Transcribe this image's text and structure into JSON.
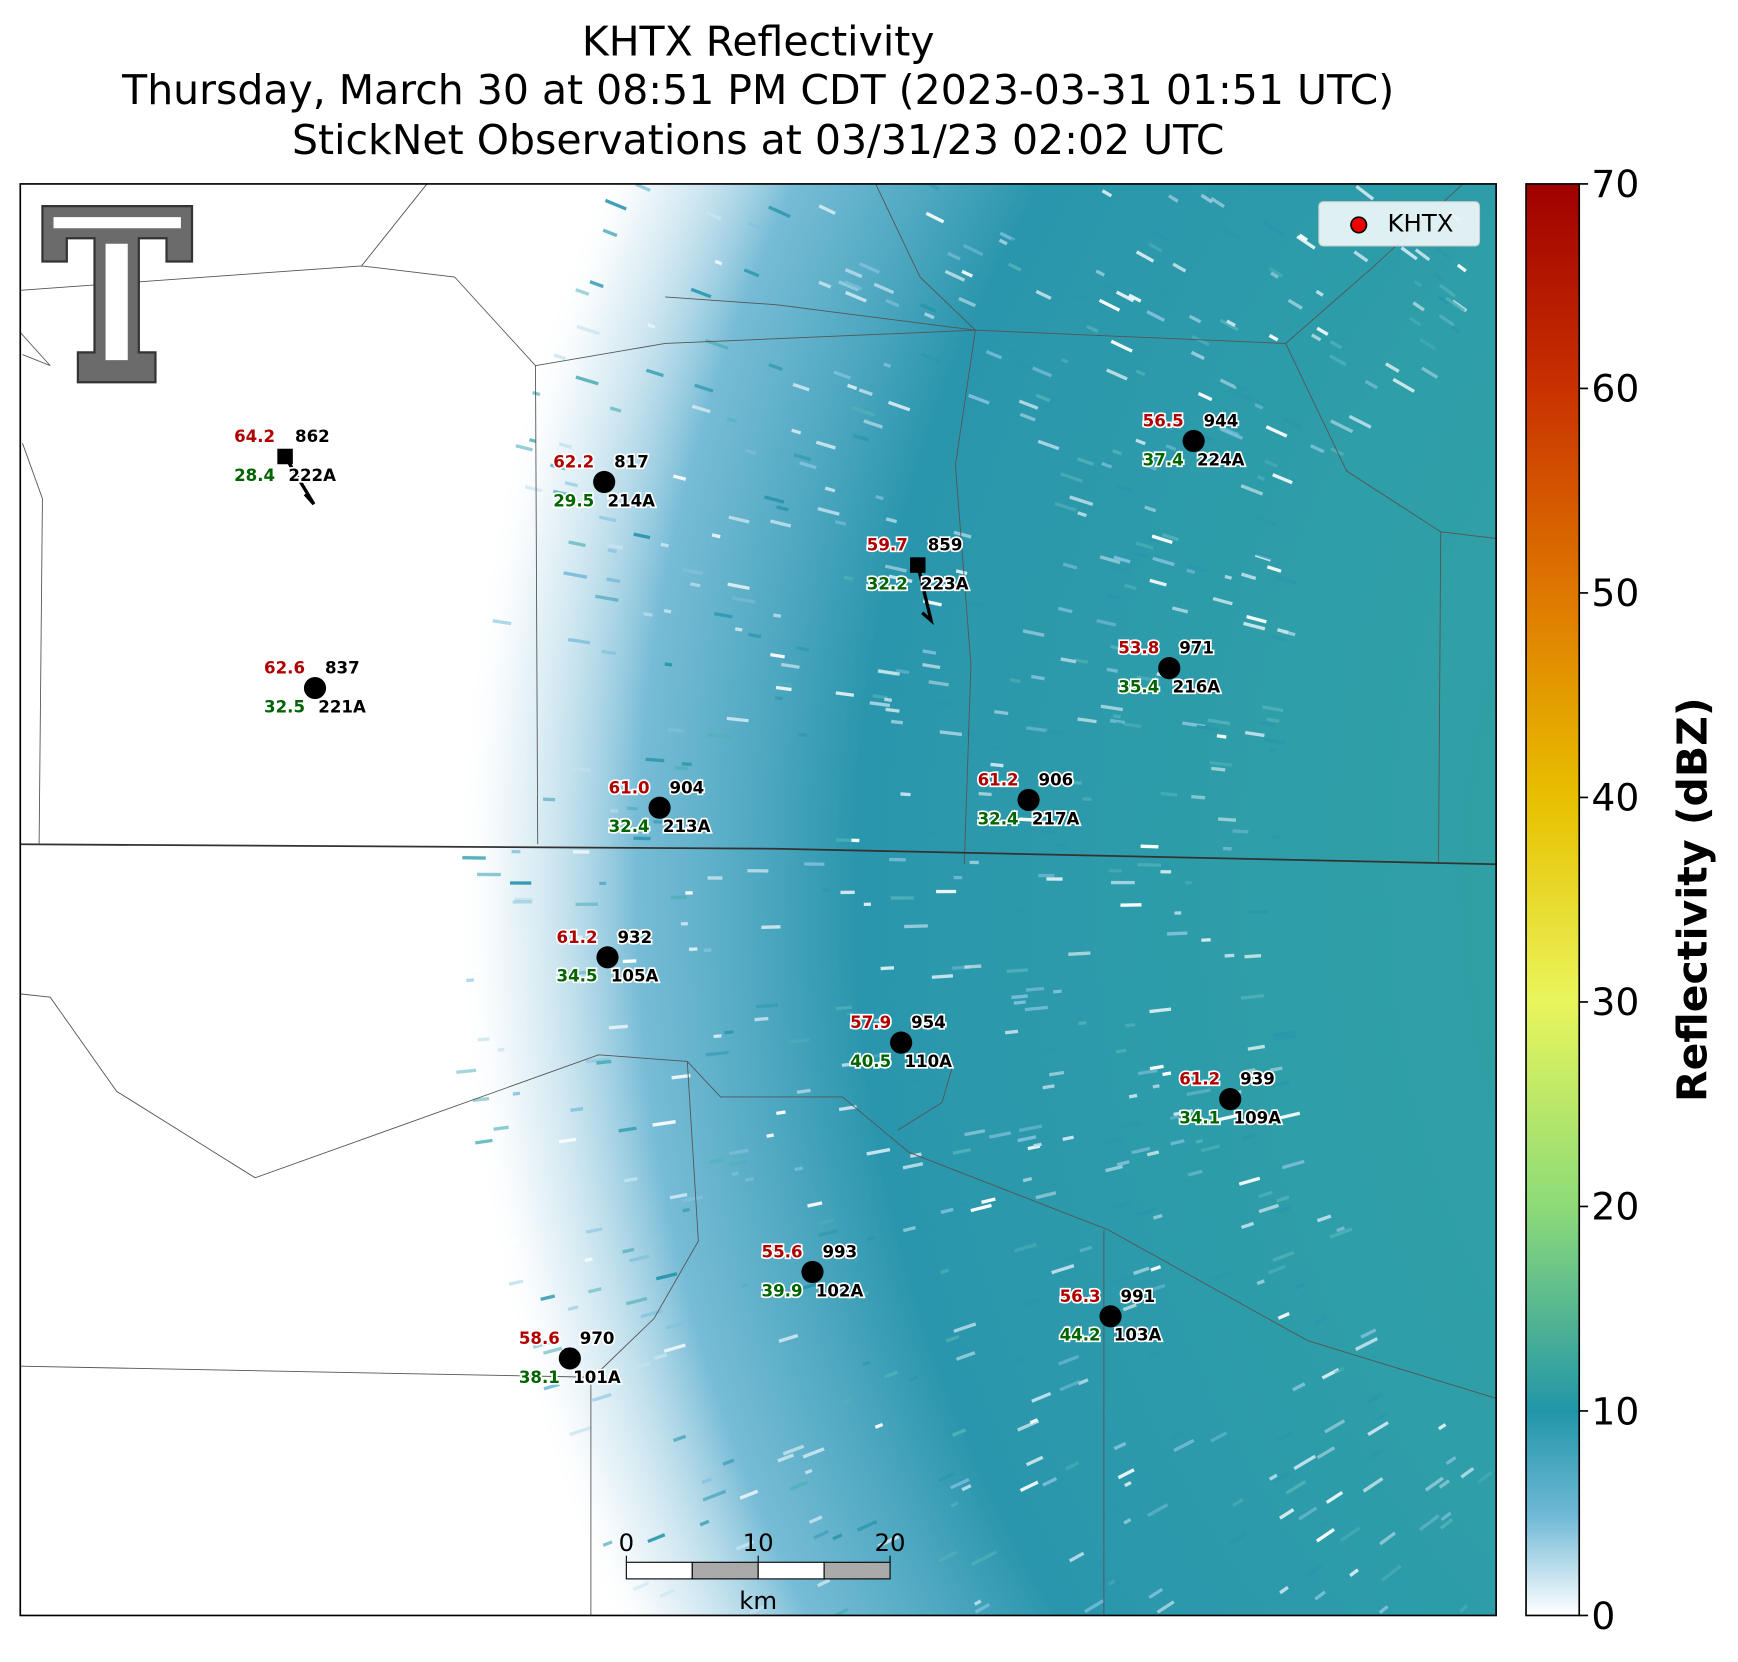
{
  "header": {
    "title_lines": [
      "KHTX Reflectivity",
      "Thursday, March 30 at 08:51 PM CDT (2023-03-31 01:51 UTC)",
      "StickNet Observations at 03/31/23 02:02 UTC"
    ]
  },
  "legend": {
    "label": "KHTX"
  },
  "stations": [
    {
      "temperature": "64.2",
      "dewpoint": "28.4",
      "pressure": "862",
      "id": "222A"
    },
    {
      "temperature": "62.2",
      "dewpoint": "29.5",
      "pressure": "817",
      "id": "214A"
    },
    {
      "temperature": "59.7",
      "dewpoint": "32.2",
      "pressure": "859",
      "id": "223A"
    },
    {
      "temperature": "56.5",
      "dewpoint": "37.4",
      "pressure": "944",
      "id": "224A"
    },
    {
      "temperature": "53.8",
      "dewpoint": "35.4",
      "pressure": "971",
      "id": "216A"
    },
    {
      "temperature": "62.6",
      "dewpoint": "32.5",
      "pressure": "837",
      "id": "221A"
    },
    {
      "temperature": "61.0",
      "dewpoint": "32.4",
      "pressure": "904",
      "id": "213A"
    },
    {
      "temperature": "61.2",
      "dewpoint": "32.4",
      "pressure": "906",
      "id": "217A"
    },
    {
      "temperature": "61.2",
      "dewpoint": "34.5",
      "pressure": "932",
      "id": "105A"
    },
    {
      "temperature": "57.9",
      "dewpoint": "40.5",
      "pressure": "954",
      "id": "110A"
    },
    {
      "temperature": "61.2",
      "dewpoint": "34.1",
      "pressure": "939",
      "id": "109A"
    },
    {
      "temperature": "55.6",
      "dewpoint": "39.9",
      "pressure": "993",
      "id": "102A"
    },
    {
      "temperature": "56.3",
      "dewpoint": "44.2",
      "pressure": "991",
      "id": "103A"
    },
    {
      "temperature": "58.6",
      "dewpoint": "38.1",
      "pressure": "970",
      "id": "101A"
    }
  ],
  "scale_bar": {
    "ticks": [
      0,
      10,
      20
    ],
    "unit": "km"
  },
  "colorbar": {
    "label": "Reflectivity (dBZ)",
    "lim": [
      0,
      70
    ],
    "ticks": [
      0,
      10,
      20,
      30,
      40,
      50,
      60,
      70
    ]
  }
}
